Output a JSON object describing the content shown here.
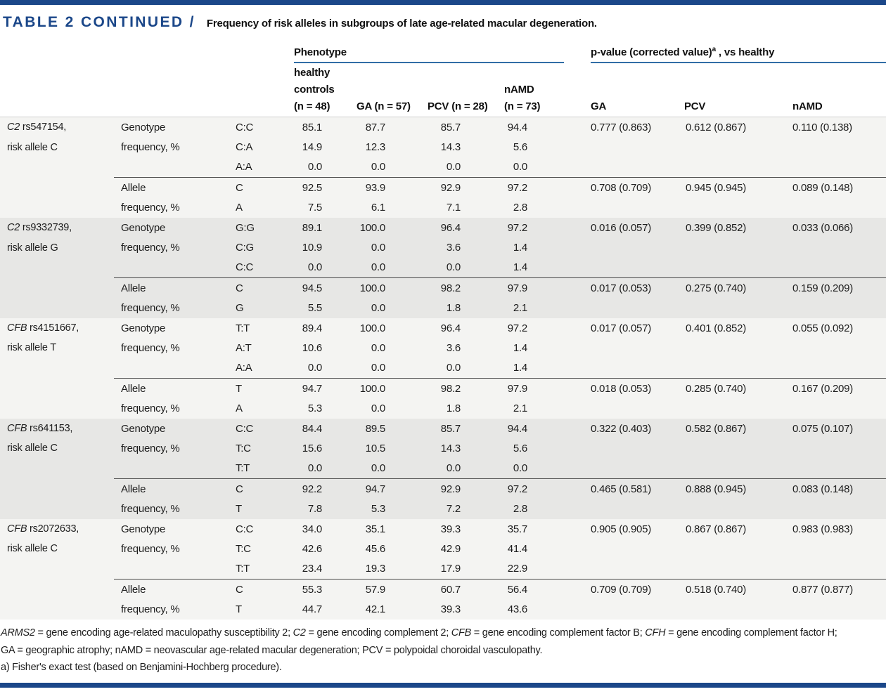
{
  "page": {
    "title": "TABLE 2 CONTINUED /",
    "subtitle": "Frequency of risk alleles in subgroups of late age-related macular degeneration.",
    "accent_color": "#1b4789",
    "underline_color": "#316da6"
  },
  "header": {
    "group_phenotype": "Phenotype",
    "group_pvalue_prefix": "p-value (corrected value)",
    "group_pvalue_sup": "a",
    "group_pvalue_suffix": " , vs healthy",
    "col_healthy_lines": [
      "healthy",
      "controls",
      "(n = 48)"
    ],
    "col_ga": "GA (n = 57)",
    "col_pcv": "PCV (n = 28)",
    "col_namd_lines": [
      "nAMD",
      "(n = 73)"
    ],
    "p_col_ga": "GA",
    "p_col_pcv": "PCV",
    "p_col_namd": "nAMD"
  },
  "row_labels": {
    "genotype": [
      "Genotype",
      "frequency, %"
    ],
    "allele": [
      "Allele",
      "frequency, %"
    ]
  },
  "blocks": [
    {
      "gene": "C2",
      "rs": "rs547154,",
      "risk": "risk allele C",
      "genotype_labels": [
        "C:C",
        "C:A",
        "A:A"
      ],
      "genotype_values": [
        [
          "85.1",
          "87.7",
          "85.7",
          "94.4"
        ],
        [
          "14.9",
          "12.3",
          "14.3",
          "5.6"
        ],
        [
          "0.0",
          "0.0",
          "0.0",
          "0.0"
        ]
      ],
      "genotype_p": [
        "0.777 (0.863)",
        "0.612 (0.867)",
        "0.110 (0.138)"
      ],
      "allele_labels": [
        "C",
        "A"
      ],
      "allele_values": [
        [
          "92.5",
          "93.9",
          "92.9",
          "97.2"
        ],
        [
          "7.5",
          "6.1",
          "7.1",
          "2.8"
        ]
      ],
      "allele_p": [
        "0.708 (0.709)",
        "0.945 (0.945)",
        "0.089 (0.148)"
      ]
    },
    {
      "gene": "C2",
      "rs": "rs9332739,",
      "risk": "risk allele G",
      "genotype_labels": [
        "G:G",
        "C:G",
        "C:C"
      ],
      "genotype_values": [
        [
          "89.1",
          "100.0",
          "96.4",
          "97.2"
        ],
        [
          "10.9",
          "0.0",
          "3.6",
          "1.4"
        ],
        [
          "0.0",
          "0.0",
          "0.0",
          "1.4"
        ]
      ],
      "genotype_p": [
        "0.016 (0.057)",
        "0.399 (0.852)",
        "0.033 (0.066)"
      ],
      "allele_labels": [
        "C",
        "G"
      ],
      "allele_values": [
        [
          "94.5",
          "100.0",
          "98.2",
          "97.9"
        ],
        [
          "5.5",
          "0.0",
          "1.8",
          "2.1"
        ]
      ],
      "allele_p": [
        "0.017 (0.053)",
        "0.275 (0.740)",
        "0.159 (0.209)"
      ]
    },
    {
      "gene": "CFB",
      "rs": "rs4151667,",
      "risk": "risk allele T",
      "genotype_labels": [
        "T:T",
        "A:T",
        "A:A"
      ],
      "genotype_values": [
        [
          "89.4",
          "100.0",
          "96.4",
          "97.2"
        ],
        [
          "10.6",
          "0.0",
          "3.6",
          "1.4"
        ],
        [
          "0.0",
          "0.0",
          "0.0",
          "1.4"
        ]
      ],
      "genotype_p": [
        "0.017 (0.057)",
        "0.401 (0.852)",
        "0.055 (0.092)"
      ],
      "allele_labels": [
        "T",
        "A"
      ],
      "allele_values": [
        [
          "94.7",
          "100.0",
          "98.2",
          "97.9"
        ],
        [
          "5.3",
          "0.0",
          "1.8",
          "2.1"
        ]
      ],
      "allele_p": [
        "0.018 (0.053)",
        "0.285 (0.740)",
        "0.167 (0.209)"
      ]
    },
    {
      "gene": "CFB",
      "rs": "rs641153,",
      "risk": "risk allele C",
      "genotype_labels": [
        "C:C",
        "T:C",
        "T:T"
      ],
      "genotype_values": [
        [
          "84.4",
          "89.5",
          "85.7",
          "94.4"
        ],
        [
          "15.6",
          "10.5",
          "14.3",
          "5.6"
        ],
        [
          "0.0",
          "0.0",
          "0.0",
          "0.0"
        ]
      ],
      "genotype_p": [
        "0.322 (0.403)",
        "0.582 (0.867)",
        "0.075 (0.107)"
      ],
      "allele_labels": [
        "C",
        "T"
      ],
      "allele_values": [
        [
          "92.2",
          "94.7",
          "92.9",
          "97.2"
        ],
        [
          "7.8",
          "5.3",
          "7.2",
          "2.8"
        ]
      ],
      "allele_p": [
        "0.465 (0.581)",
        "0.888 (0.945)",
        "0.083 (0.148)"
      ]
    },
    {
      "gene": "CFB",
      "rs": "rs2072633,",
      "risk": "risk allele C",
      "genotype_labels": [
        "C:C",
        "T:C",
        "T:T"
      ],
      "genotype_values": [
        [
          "34.0",
          "35.1",
          "39.3",
          "35.7"
        ],
        [
          "42.6",
          "45.6",
          "42.9",
          "41.4"
        ],
        [
          "23.4",
          "19.3",
          "17.9",
          "22.9"
        ]
      ],
      "genotype_p": [
        "0.905 (0.905)",
        "0.867 (0.867)",
        "0.983 (0.983)"
      ],
      "allele_labels": [
        "C",
        "T"
      ],
      "allele_values": [
        [
          "55.3",
          "57.9",
          "60.7",
          "56.4"
        ],
        [
          "44.7",
          "42.1",
          "39.3",
          "43.6"
        ]
      ],
      "allele_p": [
        "0.709 (0.709)",
        "0.518 (0.740)",
        "0.877 (0.877)"
      ]
    }
  ],
  "footnotes": {
    "line1_segments": [
      {
        "text": "ARMS2",
        "italic": true
      },
      {
        "text": " = gene encoding age-related maculopathy susceptibility 2; ",
        "italic": false
      },
      {
        "text": "C2",
        "italic": true
      },
      {
        "text": " = gene encoding complement 2; ",
        "italic": false
      },
      {
        "text": "CFB",
        "italic": true
      },
      {
        "text": " = gene encoding complement factor B; ",
        "italic": false
      },
      {
        "text": "CFH",
        "italic": true
      },
      {
        "text": " = gene encoding complement factor H;",
        "italic": false
      }
    ],
    "line2": "GA = geographic atrophy; nAMD = neovascular age-related macular degeneration; PCV = polypoidal choroidal vasculopathy.",
    "line3": "a) Fisher's exact test (based on Benjamini-Hochberg procedure)."
  }
}
